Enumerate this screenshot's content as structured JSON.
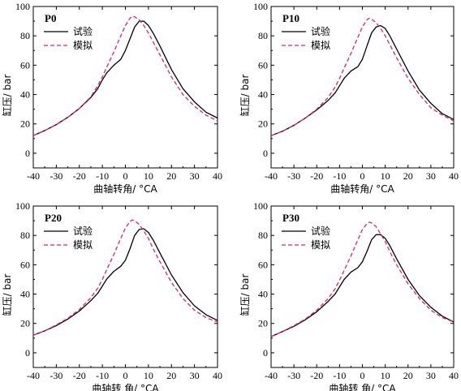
{
  "chart_data": [
    {
      "type": "line",
      "panel_label": "P0",
      "xlabel": "曲轴转角/ °CA",
      "ylabel": "缸压/ bar",
      "xlim": [
        -40,
        40
      ],
      "ylim": [
        -10,
        100
      ],
      "xticks": [
        -40,
        -30,
        -20,
        -10,
        0,
        10,
        20,
        30,
        40
      ],
      "yticks": [
        0,
        20,
        40,
        60,
        80,
        100
      ],
      "legend_position": "top-right",
      "series": [
        {
          "name": "试验",
          "color": "#000000",
          "dash": "solid",
          "x": [
            -40,
            -35,
            -30,
            -25,
            -20,
            -15,
            -12,
            -10,
            -8,
            -5,
            -2,
            0,
            2,
            4,
            6,
            8,
            10,
            12,
            15,
            20,
            25,
            30,
            35,
            40
          ],
          "y": [
            12,
            15.5,
            19.5,
            24.5,
            30.5,
            38,
            44,
            50,
            55,
            60,
            64,
            70,
            78,
            86,
            90,
            90,
            87,
            82,
            73,
            57,
            44,
            35,
            28,
            24
          ]
        },
        {
          "name": "模拟",
          "color": "#e0245e",
          "dash": "dashed",
          "x": [
            -40,
            -35,
            -30,
            -25,
            -20,
            -15,
            -12,
            -10,
            -8,
            -5,
            -2,
            0,
            2,
            3,
            4,
            6,
            8,
            10,
            12,
            15,
            20,
            25,
            30,
            35,
            40
          ],
          "y": [
            12,
            15.5,
            19.5,
            24.5,
            30.5,
            38.5,
            46,
            52,
            59,
            69,
            80,
            87,
            92,
            93.5,
            93,
            91,
            87,
            82,
            76,
            67,
            52,
            40,
            32,
            26,
            22
          ]
        }
      ]
    },
    {
      "type": "line",
      "panel_label": "P10",
      "xlabel": "曲轴转角/ °CA",
      "ylabel": "缸压/ bar",
      "xlim": [
        -40,
        40
      ],
      "ylim": [
        -10,
        100
      ],
      "xticks": [
        -40,
        -30,
        -20,
        -10,
        0,
        10,
        20,
        30,
        40
      ],
      "yticks": [
        0,
        20,
        40,
        60,
        80,
        100
      ],
      "legend_position": "top-right",
      "series": [
        {
          "name": "试验",
          "color": "#000000",
          "dash": "solid",
          "x": [
            -40,
            -35,
            -30,
            -25,
            -20,
            -15,
            -12,
            -10,
            -8,
            -5,
            -2,
            0,
            2,
            4,
            6,
            8,
            10,
            12,
            15,
            20,
            25,
            30,
            35,
            40
          ],
          "y": [
            12,
            15,
            19,
            24,
            29.5,
            36,
            41,
            46,
            51,
            56,
            59,
            64,
            73,
            82,
            86,
            87,
            85,
            80,
            71,
            56,
            43,
            34,
            27,
            23
          ]
        },
        {
          "name": "模拟",
          "color": "#e0245e",
          "dash": "dashed",
          "x": [
            -40,
            -35,
            -30,
            -25,
            -20,
            -15,
            -12,
            -10,
            -8,
            -5,
            -2,
            0,
            2,
            3,
            4,
            6,
            8,
            10,
            12,
            15,
            20,
            25,
            30,
            35,
            40
          ],
          "y": [
            12,
            15,
            19,
            24,
            30,
            38,
            45,
            51,
            58,
            68,
            79,
            86,
            91,
            92,
            91.5,
            89,
            85,
            80,
            74,
            65,
            51,
            40,
            31,
            26,
            22
          ]
        }
      ]
    },
    {
      "type": "line",
      "panel_label": "P20",
      "xlabel": "曲轴转 角/ °CA",
      "ylabel": "缸压/ bar",
      "xlim": [
        -40,
        40
      ],
      "ylim": [
        -10,
        100
      ],
      "xticks": [
        -40,
        -30,
        -20,
        -10,
        0,
        10,
        20,
        30,
        40
      ],
      "yticks": [
        0,
        20,
        40,
        60,
        80,
        100
      ],
      "legend_position": "top-right",
      "series": [
        {
          "name": "试验",
          "color": "#000000",
          "dash": "solid",
          "x": [
            -40,
            -35,
            -30,
            -25,
            -20,
            -15,
            -12,
            -10,
            -8,
            -5,
            -2,
            0,
            2,
            4,
            6,
            8,
            10,
            12,
            15,
            20,
            25,
            30,
            35,
            40
          ],
          "y": [
            12,
            15,
            18.5,
            23,
            28.5,
            35.5,
            40.5,
            45.5,
            50.5,
            55.5,
            59,
            63,
            71,
            80,
            84,
            84.5,
            82,
            77,
            68,
            53,
            41,
            32,
            26,
            22
          ]
        },
        {
          "name": "模拟",
          "color": "#e0245e",
          "dash": "dashed",
          "x": [
            -40,
            -35,
            -30,
            -25,
            -20,
            -15,
            -12,
            -10,
            -8,
            -5,
            -2,
            0,
            2,
            3,
            4,
            6,
            8,
            10,
            12,
            15,
            20,
            25,
            30,
            35,
            40
          ],
          "y": [
            12,
            15,
            19,
            23.5,
            29.5,
            37.5,
            44,
            50,
            57,
            67,
            78,
            85,
            89.5,
            90.5,
            90,
            87.5,
            83,
            78,
            71,
            62,
            48,
            37,
            29,
            24,
            21
          ]
        }
      ]
    },
    {
      "type": "line",
      "panel_label": "P30",
      "xlabel": "曲轴转 角/ °CA",
      "ylabel": "缸压/ bar",
      "xlim": [
        -40,
        40
      ],
      "ylim": [
        -10,
        100
      ],
      "xticks": [
        -40,
        -30,
        -20,
        -10,
        0,
        10,
        20,
        30,
        40
      ],
      "yticks": [
        0,
        20,
        40,
        60,
        80,
        100
      ],
      "legend_position": "top-right",
      "series": [
        {
          "name": "试验",
          "color": "#000000",
          "dash": "solid",
          "x": [
            -40,
            -35,
            -30,
            -25,
            -20,
            -15,
            -12,
            -10,
            -8,
            -5,
            -2,
            0,
            2,
            4,
            6,
            8,
            10,
            12,
            15,
            20,
            25,
            30,
            35,
            40
          ],
          "y": [
            11,
            14.5,
            18,
            22.5,
            28,
            35,
            40,
            45,
            50,
            55,
            58,
            62,
            69,
            77,
            80.5,
            80.5,
            78,
            73,
            64,
            50,
            39,
            31,
            25,
            21
          ]
        },
        {
          "name": "模拟",
          "color": "#e0245e",
          "dash": "dashed",
          "x": [
            -40,
            -35,
            -30,
            -25,
            -20,
            -15,
            -12,
            -10,
            -8,
            -5,
            -2,
            0,
            2,
            3,
            4,
            6,
            8,
            10,
            12,
            15,
            20,
            25,
            30,
            35,
            40
          ],
          "y": [
            11,
            14.5,
            18.5,
            23,
            29,
            37,
            43.5,
            49.5,
            56,
            66,
            77,
            84,
            88,
            89,
            88.5,
            86,
            81,
            76,
            69,
            60,
            47,
            37,
            29,
            24,
            21
          ]
        }
      ]
    }
  ]
}
